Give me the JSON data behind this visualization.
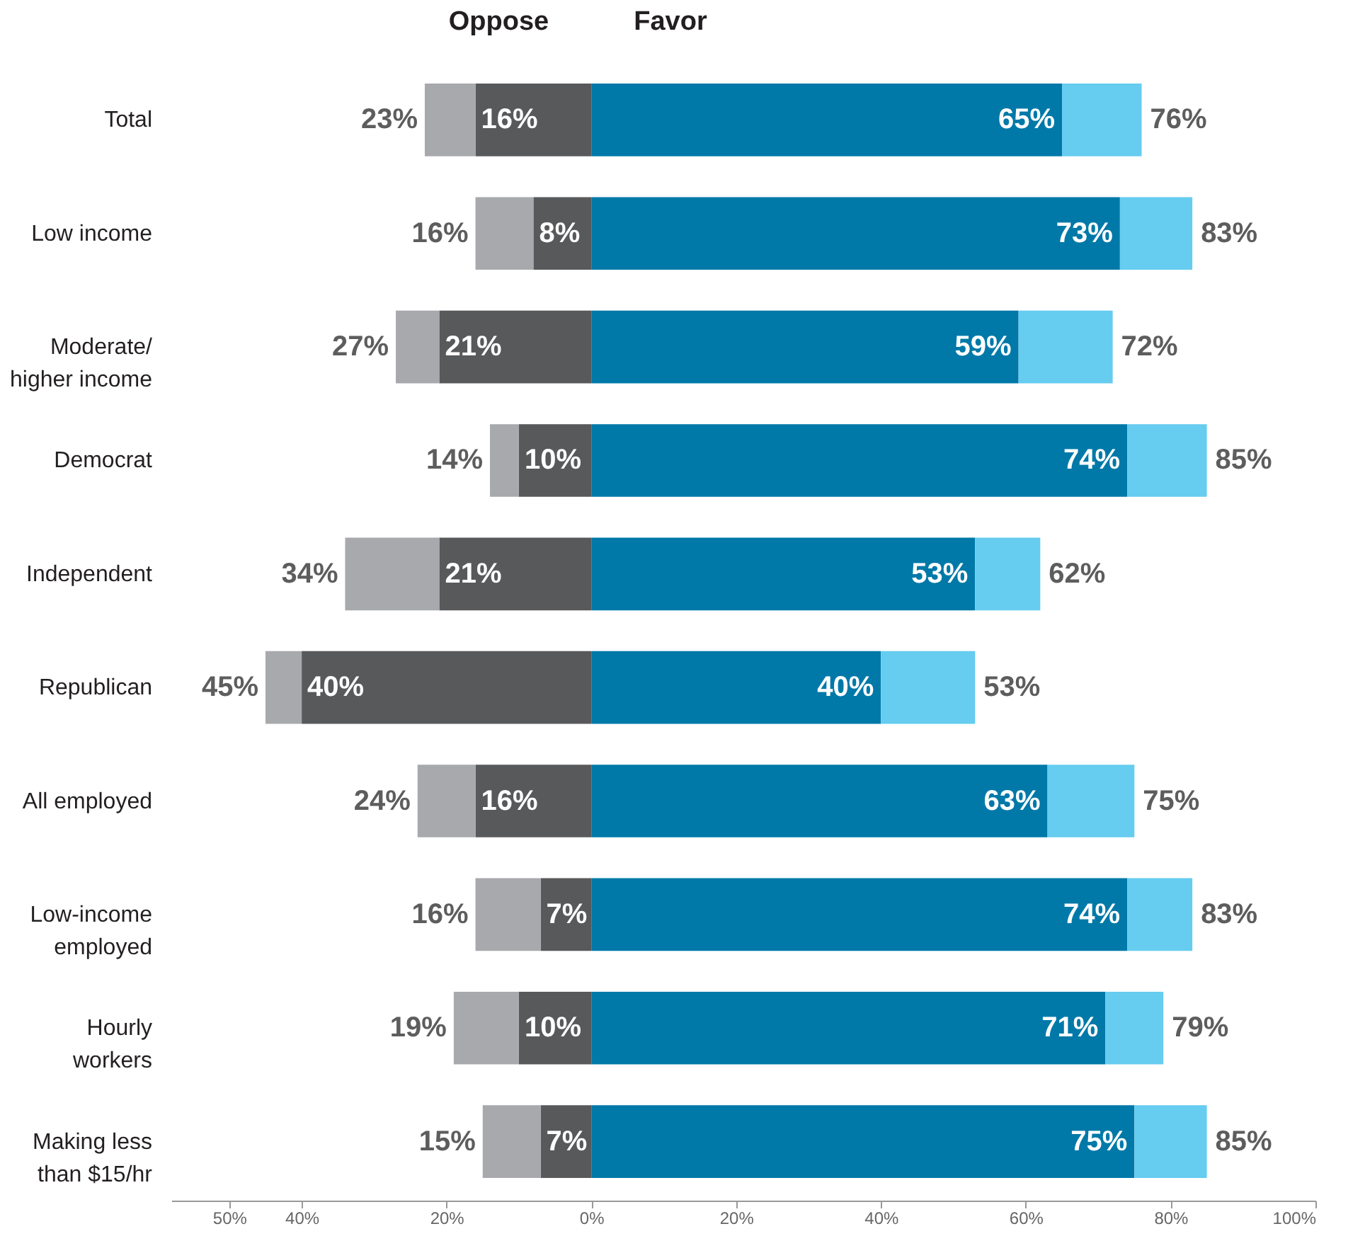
{
  "chart_data": {
    "type": "bar",
    "orientation": "horizontal",
    "stacked": true,
    "categories": [
      "Total",
      "Low income",
      "Moderate/higher income",
      "Democrat",
      "Independent",
      "Republican",
      "All employed",
      "Low-income employed",
      "Hourly workers",
      "Making less than $15/hr"
    ],
    "series": [
      {
        "color": "#58595b",
        "values": [
          -16,
          -8,
          -21,
          -10,
          -21,
          -40,
          -16,
          -7,
          -10,
          -7
        ]
      },
      {
        "color": "#a7a9ac",
        "values": [
          -7,
          -8,
          -6,
          -4,
          -13,
          -5,
          -8,
          -9,
          -9,
          -8
        ]
      },
      {
        "color": "#0079a8",
        "values": [
          65,
          73,
          59,
          74,
          53,
          40,
          63,
          74,
          71,
          75
        ]
      },
      {
        "color": "#66ccf0",
        "values": [
          11,
          10,
          13,
          11,
          9,
          13,
          12,
          9,
          8,
          10
        ]
      }
    ],
    "annotations": [
      "Oppose",
      "Favor",
      {
        "text": "16%",
        "x": -16,
        "y": "Total"
      },
      {
        "text": "23%",
        "x": -23,
        "y": "Total"
      },
      {
        "text": "65%",
        "x": 65,
        "y": "Total"
      },
      {
        "text": "76%",
        "x": 76,
        "y": "Total"
      },
      {
        "text": "8%",
        "x": -8,
        "y": "Low income"
      },
      {
        "text": "16%",
        "x": -16,
        "y": "Low income"
      },
      {
        "text": "73%",
        "x": 73,
        "y": "Low income"
      },
      {
        "text": "83%",
        "x": 83,
        "y": "Low income"
      },
      {
        "text": "21%",
        "x": -21,
        "y": "Moderate/higher income"
      },
      {
        "text": "27%",
        "x": -27,
        "y": "Moderate/higher income"
      },
      {
        "text": "59%",
        "x": 59,
        "y": "Moderate/higher income"
      },
      {
        "text": "72%",
        "x": 72,
        "y": "Moderate/higher income"
      },
      {
        "text": "10%",
        "x": -10,
        "y": "Democrat"
      },
      {
        "text": "14%",
        "x": -14,
        "y": "Democrat"
      },
      {
        "text": "74%",
        "x": 74,
        "y": "Democrat"
      },
      {
        "text": "85%",
        "x": 85,
        "y": "Democrat"
      },
      {
        "text": "21%",
        "x": -21,
        "y": "Independent"
      },
      {
        "text": "34%",
        "x": -34,
        "y": "Independent"
      },
      {
        "text": "53%",
        "x": 53,
        "y": "Independent"
      },
      {
        "text": "62%",
        "x": 62,
        "y": "Independent"
      },
      {
        "text": "40%",
        "x": -40,
        "y": "Republican"
      },
      {
        "text": "45%",
        "x": -45,
        "y": "Republican"
      },
      {
        "text": "40%",
        "x": 40,
        "y": "Republican"
      },
      {
        "text": "53%",
        "x": 53,
        "y": "Republican"
      },
      {
        "text": "16%",
        "x": -16,
        "y": "All employed"
      },
      {
        "text": "24%",
        "x": -24,
        "y": "All employed"
      },
      {
        "text": "63%",
        "x": 63,
        "y": "All employed"
      },
      {
        "text": "75%",
        "x": 75,
        "y": "All employed"
      },
      {
        "text": "7%",
        "x": -7,
        "y": "Low-income employed"
      },
      {
        "text": "16%",
        "x": -16,
        "y": "Low-income employed"
      },
      {
        "text": "74%",
        "x": 74,
        "y": "Low-income employed"
      },
      {
        "text": "83%",
        "x": 83,
        "y": "Low-income employed"
      },
      {
        "text": "10%",
        "x": -10,
        "y": "Hourly workers"
      },
      {
        "text": "19%",
        "x": -19,
        "y": "Hourly workers"
      },
      {
        "text": "71%",
        "x": 71,
        "y": "Hourly workers"
      },
      {
        "text": "79%",
        "x": 79,
        "y": "Hourly workers"
      },
      {
        "text": "7%",
        "x": -7,
        "y": "Making less than $15/hr"
      },
      {
        "text": "15%",
        "x": -15,
        "y": "Making less than $15/hr"
      },
      {
        "text": "75%",
        "x": 75,
        "y": "Making less than $15/hr"
      },
      {
        "text": "85%",
        "x": 85,
        "y": "Making less than $15/hr"
      }
    ],
    "xlim": [
      -58,
      100
    ],
    "xticks": [
      {
        "value": -50,
        "label": "50%"
      },
      {
        "value": -40,
        "label": "40%"
      },
      {
        "value": -20,
        "label": "20%"
      },
      {
        "value": 0,
        "label": "0%"
      },
      {
        "value": 20,
        "label": "20%"
      },
      {
        "value": 40,
        "label": "40%"
      },
      {
        "value": 60,
        "label": "60%"
      },
      {
        "value": 80,
        "label": "80%"
      },
      {
        "value": 100,
        "label": "100%"
      }
    ]
  }
}
